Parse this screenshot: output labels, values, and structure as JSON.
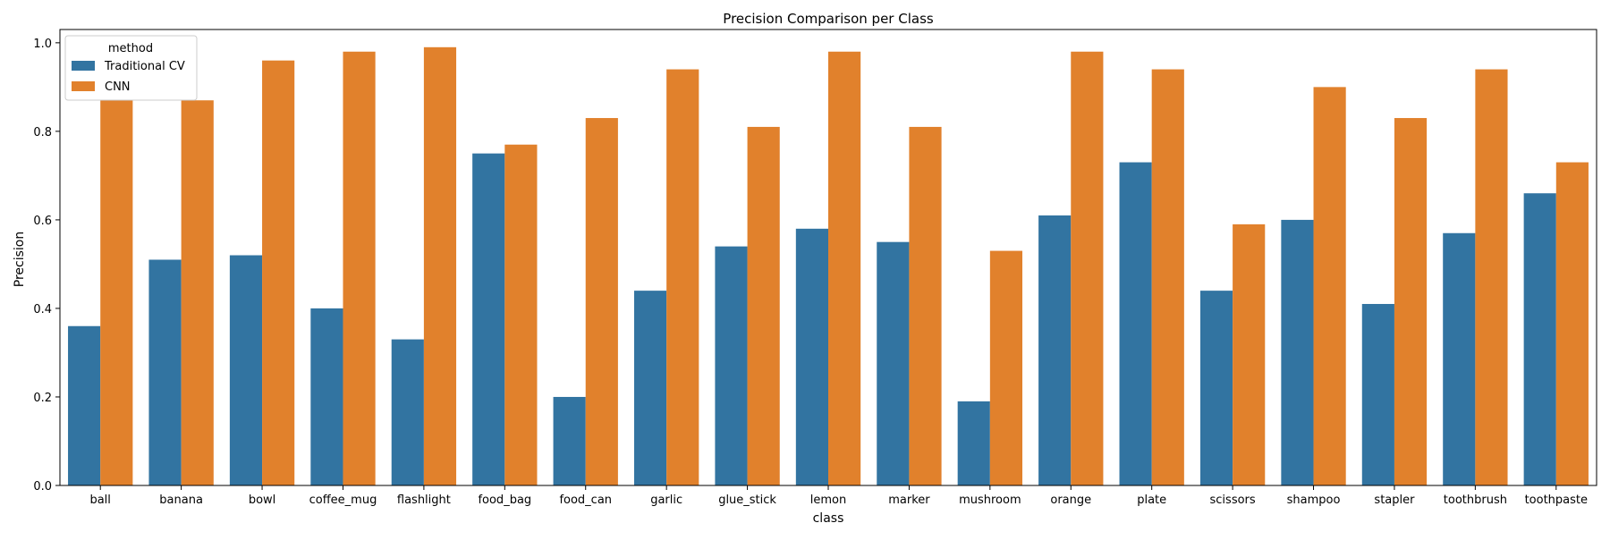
{
  "chart_data": {
    "type": "bar",
    "title": "Precision Comparison per Class",
    "xlabel": "class",
    "ylabel": "Precision",
    "ylim": [
      0,
      1.03
    ],
    "yticks": [
      "0.0",
      "0.2",
      "0.4",
      "0.6",
      "0.8",
      "1.0"
    ],
    "grid": false,
    "legend": {
      "title": "method",
      "placement": "upper-left"
    },
    "categories": [
      "ball",
      "banana",
      "bowl",
      "coffee_mug",
      "flashlight",
      "food_bag",
      "food_can",
      "garlic",
      "glue_stick",
      "lemon",
      "marker",
      "mushroom",
      "orange",
      "plate",
      "scissors",
      "shampoo",
      "stapler",
      "toothbrush",
      "toothpaste"
    ],
    "series": [
      {
        "name": "Traditional CV",
        "color": "#3274a1",
        "values": [
          0.36,
          0.51,
          0.52,
          0.4,
          0.33,
          0.75,
          0.2,
          0.44,
          0.54,
          0.58,
          0.55,
          0.19,
          0.61,
          0.73,
          0.44,
          0.6,
          0.41,
          0.57,
          0.66
        ]
      },
      {
        "name": "CNN",
        "color": "#e1812c",
        "values": [
          0.87,
          0.87,
          0.96,
          0.98,
          0.99,
          0.77,
          0.83,
          0.94,
          0.81,
          0.98,
          0.81,
          0.53,
          0.98,
          0.94,
          0.59,
          0.9,
          0.83,
          0.94,
          0.73
        ]
      }
    ]
  }
}
